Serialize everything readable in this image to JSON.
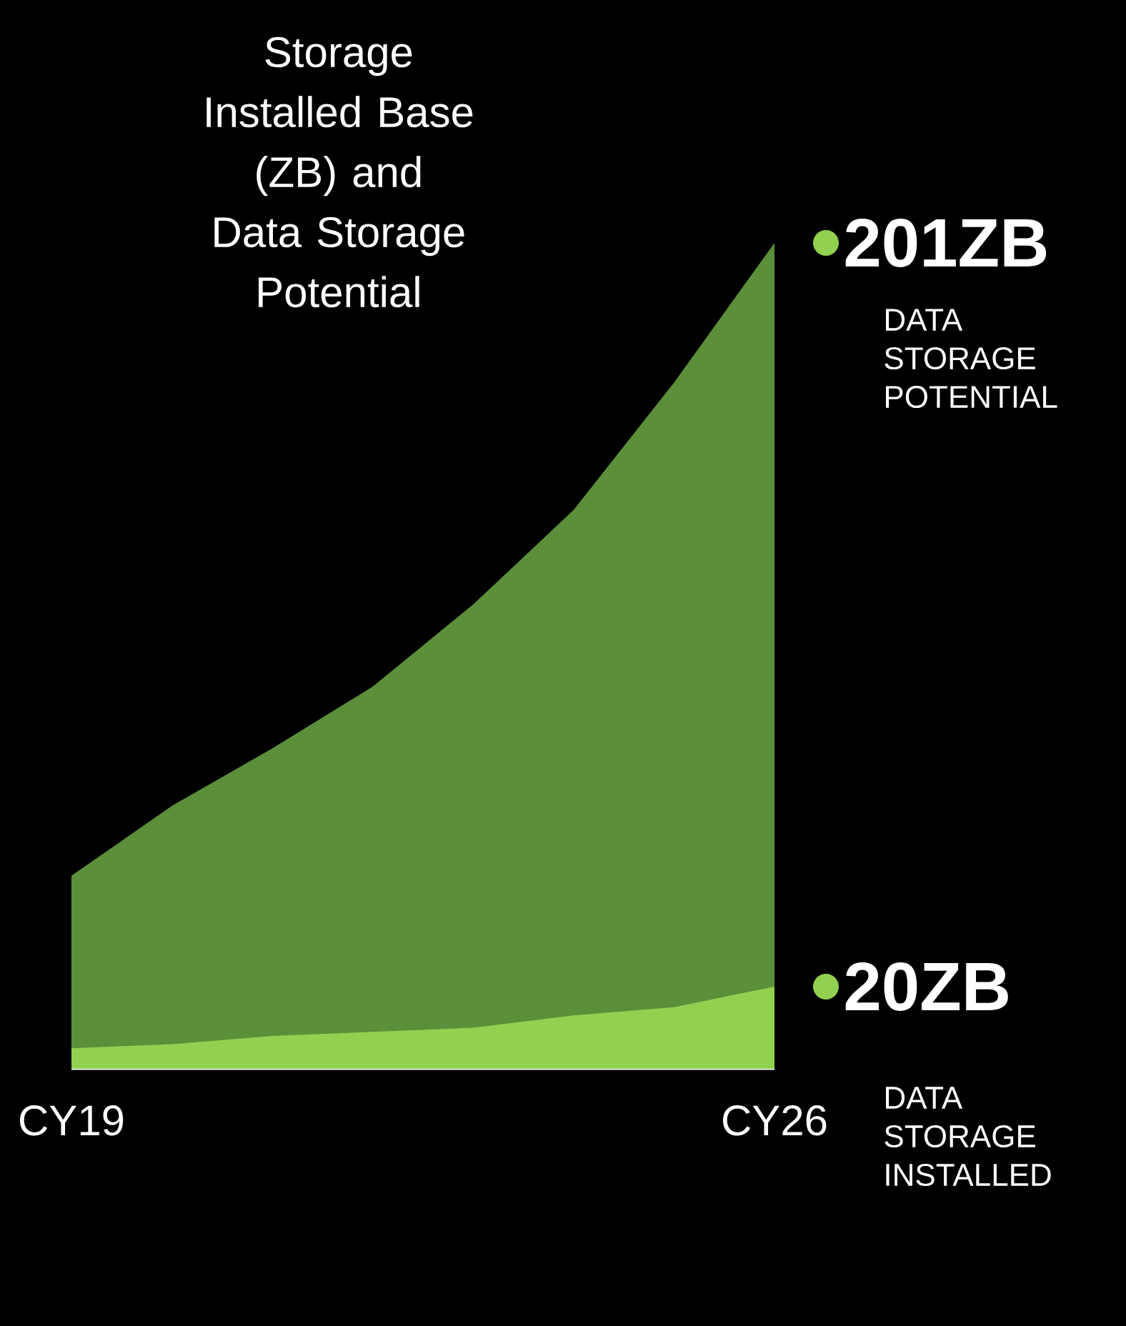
{
  "chart_data": {
    "type": "area",
    "title": "Storage Installed Base (ZB) and Data Storage Potential",
    "categories": [
      "CY19",
      null,
      null,
      null,
      null,
      null,
      null,
      "CY26"
    ],
    "series": [
      {
        "name": "DATA STORAGE POTENTIAL",
        "color": "#5b8f3a",
        "values": [
          47,
          64,
          78,
          93,
          113,
          136,
          167,
          201
        ],
        "value_labels": [
          null,
          null,
          null,
          null,
          null,
          null,
          null,
          "201ZB"
        ]
      },
      {
        "name": "DATA STORAGE INSTALLED",
        "color": "#92d050",
        "values": [
          5,
          6,
          8,
          9,
          10,
          13,
          15,
          20
        ],
        "value_labels": [
          null,
          null,
          null,
          null,
          null,
          null,
          null,
          "20ZB"
        ]
      }
    ],
    "tick_labels": "x"
  }
}
